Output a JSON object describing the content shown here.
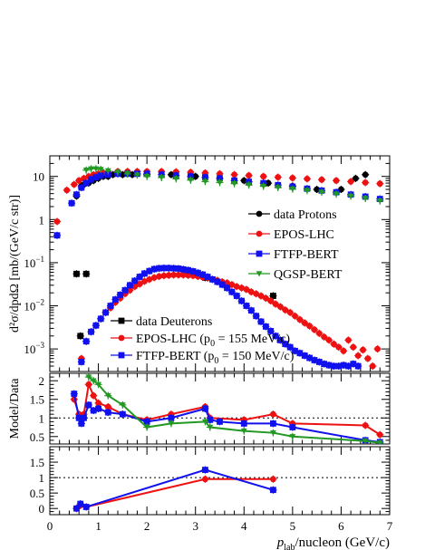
{
  "chart_data": {
    "type": "scatter",
    "x_axis": {
      "label_main": "p",
      "label_sub": "lab",
      "label_rest": "/nucleon (GeV/c)",
      "range": [
        0,
        7
      ],
      "ticks": [
        "0",
        "1",
        "2",
        "3",
        "4",
        "5",
        "6",
        "7"
      ]
    },
    "panels": [
      {
        "id": "top",
        "ylabel": "d²σ/dpdΩ [mb/(GeV/c str)]",
        "yscale": "log",
        "ylim": [
          0.0003,
          30
        ],
        "yticks": [
          {
            "value": 10,
            "mantissa": "10",
            "exp": ""
          },
          {
            "value": 1,
            "mantissa": "1",
            "exp": ""
          },
          {
            "value": 0.1,
            "mantissa": "10",
            "exp": "−1"
          },
          {
            "value": 0.01,
            "mantissa": "10",
            "exp": "−2"
          },
          {
            "value": 0.001,
            "mantissa": "10",
            "exp": "−3"
          }
        ],
        "legend_top": [
          {
            "series": "data_protons",
            "label": "data Protons"
          },
          {
            "series": "epos_protons",
            "label": "EPOS-LHC"
          },
          {
            "series": "ftfp_protons",
            "label": "FTFP-BERT"
          },
          {
            "series": "qgsp_protons",
            "label": "QGSP-BERT"
          }
        ],
        "legend_bottom": [
          {
            "series": "data_deuterons",
            "label": "data Deuterons",
            "sub": ""
          },
          {
            "series": "epos_deuterons",
            "label_pre": "EPOS-LHC (p",
            "sub": "0",
            "label_post": " = 155 MeV/c)"
          },
          {
            "series": "ftfp_deuterons",
            "label_pre": "FTFP-BERT (p",
            "sub": "0",
            "label_post": " = 150 MeV/c)"
          }
        ],
        "series": [
          {
            "id": "data_protons",
            "name": "data Protons",
            "color": "#000000",
            "marker": "circle",
            "x": [
              0.55,
              0.65,
              0.7,
              0.8,
              0.9,
              1.0,
              1.1,
              1.2,
              1.3,
              1.5,
              1.7,
              2.0,
              2.5,
              3.0,
              3.5,
              4.0,
              4.5,
              5.0,
              5.5,
              6.0,
              6.3,
              6.5
            ],
            "y": [
              3.5,
              6,
              6.5,
              7,
              8,
              9,
              10,
              10,
              11,
              11,
              11,
              11,
              11,
              10,
              9,
              8,
              7,
              6,
              5,
              5,
              9,
              11
            ]
          },
          {
            "id": "epos_protons",
            "name": "EPOS-LHC",
            "color": "#ee1111",
            "marker": "circle",
            "x": [
              0.15,
              0.35,
              0.5,
              0.6,
              0.7,
              0.8,
              0.9,
              1.0,
              1.1,
              1.2,
              1.4,
              1.6,
              1.8,
              2.0,
              2.3,
              2.6,
              2.9,
              3.2,
              3.5,
              3.8,
              4.1,
              4.4,
              4.7,
              5.0,
              5.3,
              5.6,
              5.9,
              6.2,
              6.5,
              6.8
            ],
            "y": [
              0.9,
              4.8,
              6.5,
              8,
              9,
              10,
              11,
              11.5,
              12,
              12.5,
              13,
              13,
              13,
              13,
              13,
              12.8,
              12.5,
              12,
              11.5,
              11,
              10.5,
              10,
              9.6,
              9.2,
              8.8,
              8.4,
              8,
              7.6,
              7.2,
              6.8
            ]
          },
          {
            "id": "ftfp_protons",
            "name": "FTFP-BERT",
            "color": "#1111ee",
            "marker": "square",
            "x": [
              0.15,
              0.45,
              0.55,
              0.65,
              0.75,
              0.85,
              0.95,
              1.05,
              1.2,
              1.4,
              1.6,
              1.8,
              2.0,
              2.3,
              2.6,
              2.9,
              3.2,
              3.5,
              3.8,
              4.1,
              4.4,
              4.7,
              5.0,
              5.3,
              5.6,
              5.9,
              6.2,
              6.5,
              6.8
            ],
            "y": [
              0.43,
              2.4,
              3.8,
              5.5,
              7,
              8.5,
              9.5,
              10.5,
              11,
              11.5,
              11.5,
              11.5,
              11.5,
              11,
              10.5,
              10,
              9.5,
              9,
              8,
              7.5,
              7,
              6.3,
              5.8,
              5.2,
              4.7,
              4.3,
              3.8,
              3.4,
              3.0
            ]
          },
          {
            "id": "qgsp_protons",
            "name": "QGSP-BERT",
            "color": "#229922",
            "marker": "triangle-down",
            "x": [
              0.75,
              0.85,
              0.95,
              1.05,
              1.2,
              1.4,
              1.6,
              1.8,
              2.0,
              2.3,
              2.6,
              2.9,
              3.2,
              3.5,
              3.8,
              4.1,
              4.4,
              4.7,
              5.0,
              5.3,
              5.6,
              5.9,
              6.2,
              6.5,
              6.8
            ],
            "y": [
              14,
              15,
              15,
              14.5,
              13.5,
              12.5,
              11.5,
              10.8,
              10,
              9.4,
              8.8,
              8.2,
              7.6,
              7.2,
              6.8,
              6.3,
              5.9,
              5.5,
              5.1,
              4.7,
              4.3,
              3.9,
              3.5,
              3.1,
              2.7
            ]
          },
          {
            "id": "data_deuterons",
            "name": "data Deuterons",
            "color": "#000000",
            "marker": "square",
            "x": [
              0.55,
              0.63,
              0.75,
              3.2,
              4.6
            ],
            "y": [
              0.055,
              0.002,
              0.055,
              0.045,
              0.017
            ]
          },
          {
            "id": "epos_deuterons",
            "name": "EPOS-LHC",
            "color": "#ee1111",
            "marker": "circle",
            "x": [
              0.65,
              0.75,
              0.85,
              0.95,
              1.05,
              1.15,
              1.25,
              1.35,
              1.45,
              1.55,
              1.65,
              1.75,
              1.85,
              1.95,
              2.05,
              2.15,
              2.25,
              2.35,
              2.45,
              2.55,
              2.65,
              2.75,
              2.85,
              2.95,
              3.05,
              3.15,
              3.25,
              3.35,
              3.45,
              3.55,
              3.65,
              3.75,
              3.85,
              3.95,
              4.05,
              4.15,
              4.25,
              4.35,
              4.45,
              4.55,
              4.65,
              4.75,
              4.85,
              4.95,
              5.05,
              5.15,
              5.25,
              5.35,
              5.45,
              5.55,
              5.65,
              5.75,
              5.85,
              5.95,
              6.05,
              6.15,
              6.25,
              6.35,
              6.45,
              6.55,
              6.65,
              6.75
            ],
            "y": [
              0.0006,
              0.0015,
              0.0025,
              0.0035,
              0.005,
              0.007,
              0.009,
              0.012,
              0.015,
              0.019,
              0.023,
              0.028,
              0.032,
              0.037,
              0.041,
              0.045,
              0.048,
              0.05,
              0.051,
              0.052,
              0.052,
              0.052,
              0.051,
              0.05,
              0.048,
              0.046,
              0.044,
              0.041,
              0.039,
              0.036,
              0.034,
              0.031,
              0.028,
              0.026,
              0.024,
              0.021,
              0.019,
              0.017,
              0.015,
              0.013,
              0.011,
              0.0095,
              0.008,
              0.007,
              0.0058,
              0.0048,
              0.004,
              0.0034,
              0.0028,
              0.0023,
              0.0019,
              0.0016,
              0.0013,
              0.0011,
              0.0009,
              0.0016,
              0.0011,
              0.0007,
              0.00095,
              0.0006,
              0.0004,
              0.001
            ]
          },
          {
            "id": "ftfp_deuterons",
            "name": "FTFP-BERT",
            "color": "#1111ee",
            "marker": "square",
            "x": [
              0.65,
              0.75,
              0.85,
              0.95,
              1.05,
              1.15,
              1.25,
              1.35,
              1.45,
              1.55,
              1.65,
              1.75,
              1.85,
              1.95,
              2.05,
              2.15,
              2.25,
              2.35,
              2.45,
              2.55,
              2.65,
              2.75,
              2.85,
              2.95,
              3.05,
              3.15,
              3.25,
              3.35,
              3.45,
              3.55,
              3.65,
              3.75,
              3.85,
              3.95,
              4.05,
              4.15,
              4.25,
              4.35,
              4.45,
              4.55,
              4.65,
              4.75,
              4.85,
              4.95,
              5.05,
              5.15,
              5.25,
              5.35,
              5.45,
              5.55,
              5.65,
              5.75,
              5.85,
              5.95,
              6.05,
              6.15,
              6.25,
              6.35
            ],
            "y": [
              0.0005,
              0.0015,
              0.0025,
              0.0035,
              0.005,
              0.007,
              0.01,
              0.014,
              0.018,
              0.023,
              0.03,
              0.038,
              0.047,
              0.056,
              0.064,
              0.071,
              0.074,
              0.075,
              0.075,
              0.074,
              0.073,
              0.07,
              0.067,
              0.063,
              0.058,
              0.053,
              0.047,
              0.041,
              0.036,
              0.031,
              0.026,
              0.021,
              0.017,
              0.013,
              0.01,
              0.0078,
              0.0058,
              0.0043,
              0.0033,
              0.0026,
              0.002,
              0.0016,
              0.0013,
              0.0011,
              0.0009,
              0.0008,
              0.0007,
              0.00062,
              0.00055,
              0.0005,
              0.00045,
              0.00042,
              0.0004,
              0.0004,
              0.00042,
              0.0004,
              0.00045,
              0.0004
            ]
          }
        ]
      },
      {
        "id": "middle",
        "ylabel": "Model/Data",
        "yscale": "linear",
        "ylim": [
          0.3,
          2.2
        ],
        "yticks": [
          "0.5",
          "1",
          "1.5",
          "2"
        ],
        "reference_line": 1,
        "series": [
          {
            "id": "ratio_epos",
            "color": "#ee1111",
            "marker": "circle",
            "x": [
              0.5,
              0.6,
              0.65,
              0.7,
              0.8,
              0.9,
              1.0,
              1.2,
              1.5,
              2.0,
              2.5,
              3.2,
              3.3,
              4.0,
              4.6,
              5.0,
              6.5,
              6.8
            ],
            "y": [
              1.5,
              1.1,
              1.0,
              1.1,
              1.9,
              1.6,
              1.4,
              1.3,
              1.1,
              0.95,
              1.1,
              1.3,
              1.0,
              0.95,
              1.1,
              0.85,
              0.8,
              0.55
            ]
          },
          {
            "id": "ratio_ftfp",
            "color": "#1111ee",
            "marker": "square",
            "x": [
              0.5,
              0.6,
              0.65,
              0.7,
              0.8,
              0.9,
              1.0,
              1.2,
              1.5,
              2.0,
              2.5,
              3.2,
              3.3,
              3.5,
              4.0,
              4.6,
              5.0,
              6.5,
              6.8
            ],
            "y": [
              1.65,
              1.0,
              0.85,
              1.0,
              1.35,
              1.2,
              1.25,
              1.15,
              1.1,
              0.9,
              1.0,
              1.25,
              0.95,
              0.9,
              0.85,
              0.85,
              0.75,
              0.4,
              0.35
            ]
          },
          {
            "id": "ratio_qgsp",
            "color": "#229922",
            "marker": "triangle-down",
            "x": [
              0.8,
              0.9,
              1.0,
              1.2,
              1.5,
              2.0,
              2.5,
              3.2,
              3.3,
              4.0,
              4.6,
              5.0,
              6.5,
              6.8
            ],
            "y": [
              2.1,
              2.0,
              1.9,
              1.6,
              1.35,
              0.75,
              0.85,
              0.9,
              0.75,
              0.65,
              0.6,
              0.5,
              0.38,
              0.33
            ]
          }
        ]
      },
      {
        "id": "bottom",
        "ylabel": "",
        "yscale": "linear",
        "ylim": [
          -0.2,
          2.0
        ],
        "yticks": [
          "0",
          "0.5",
          "1",
          "1.5"
        ],
        "reference_line": 1,
        "series": [
          {
            "id": "ratio_d_epos",
            "color": "#ee1111",
            "marker": "circle",
            "x": [
              0.55,
              0.63,
              0.75,
              3.2,
              4.6
            ],
            "y": [
              0.0,
              0.1,
              0.05,
              0.95,
              0.95
            ]
          },
          {
            "id": "ratio_d_ftfp",
            "color": "#1111ee",
            "marker": "square",
            "x": [
              0.55,
              0.63,
              0.75,
              3.2,
              4.6
            ],
            "y": [
              0.0,
              0.15,
              0.05,
              1.25,
              0.6
            ]
          }
        ]
      }
    ]
  }
}
